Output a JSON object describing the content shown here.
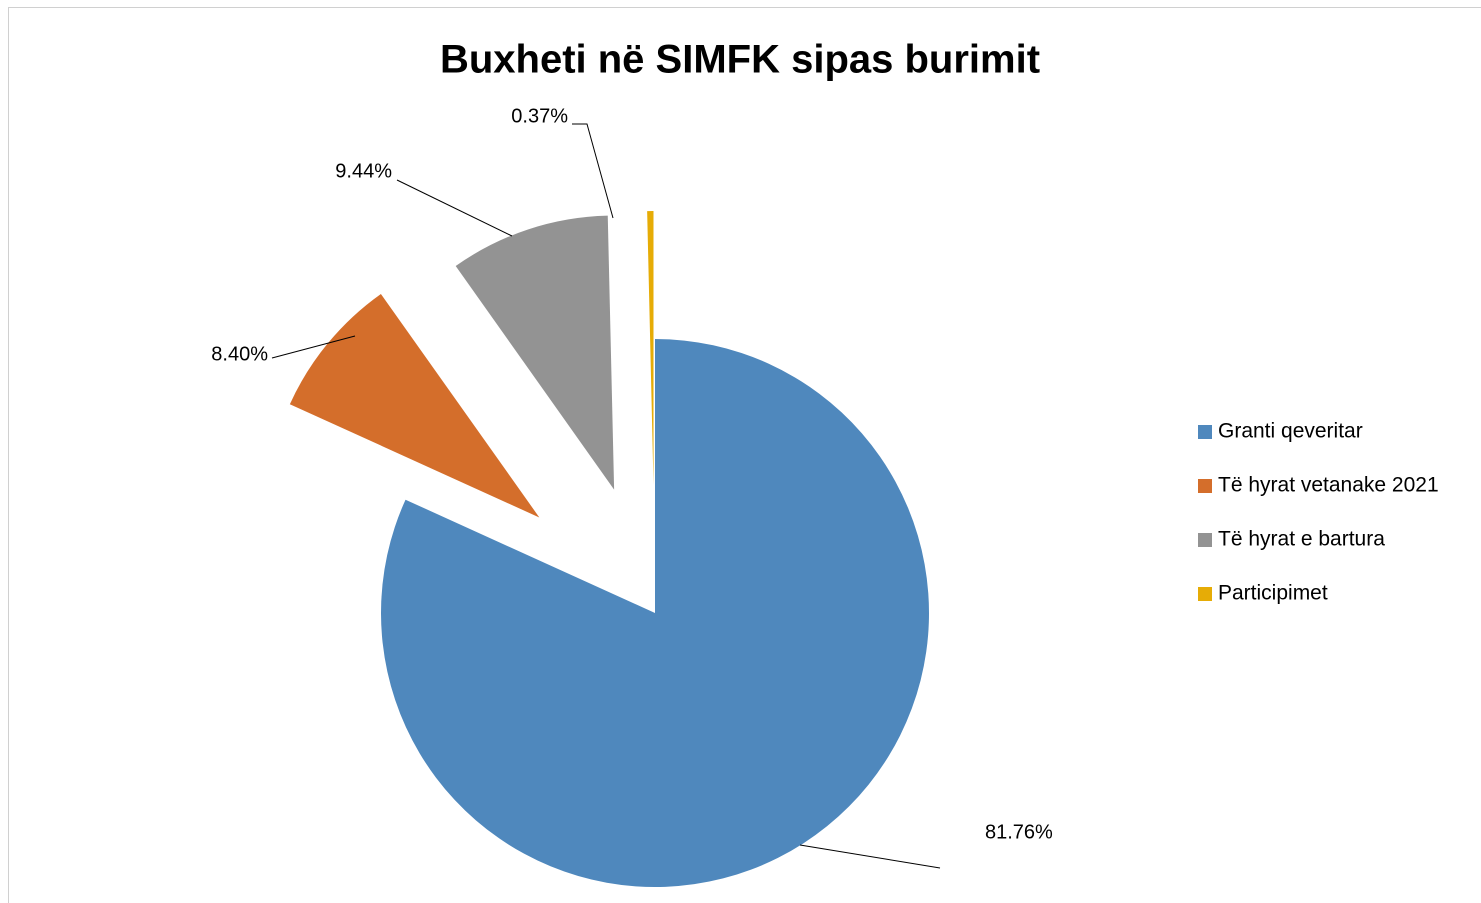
{
  "chart_data": {
    "type": "pie",
    "title": "Buxheti në SIMFK sipas burimit",
    "categories": [
      "Granti qeveritar",
      "Të hyrat vetanake 2021",
      "Të hyrat e bartura",
      "Participimet"
    ],
    "values": [
      81.76,
      8.4,
      9.44,
      0.37
    ],
    "value_labels": [
      "81.76%",
      "8.40%",
      "9.44%",
      "0.37%"
    ],
    "colors": [
      "#4f88bd",
      "#d46e2b",
      "#939393",
      "#e6ac06"
    ],
    "legend": "right"
  }
}
